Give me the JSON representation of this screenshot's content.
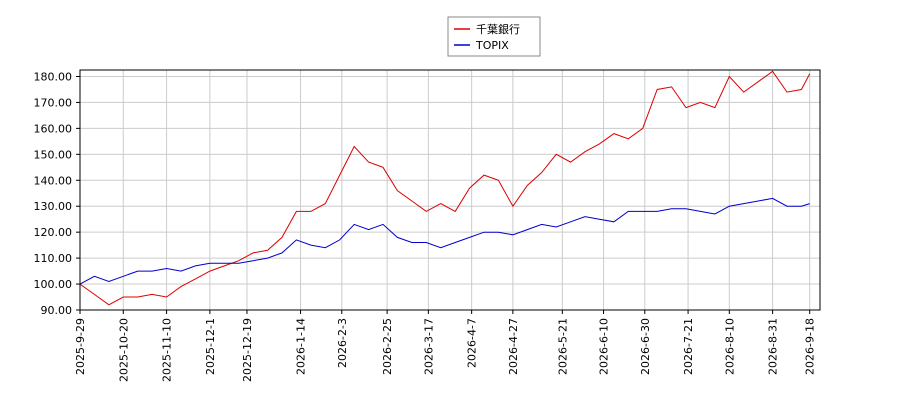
{
  "chart_data": {
    "type": "line",
    "x": [
      "2025-9-29",
      "2025-10-6",
      "2025-10-13",
      "2025-10-20",
      "2025-10-27",
      "2025-11-3",
      "2025-11-10",
      "2025-11-17",
      "2025-11-24",
      "2025-12-1",
      "2025-12-8",
      "2025-12-15",
      "2025-12-22",
      "2025-12-29",
      "2026-1-5",
      "2026-1-12",
      "2026-1-19",
      "2026-1-26",
      "2026-2-2",
      "2026-2-9",
      "2026-2-16",
      "2026-2-23",
      "2026-3-2",
      "2026-3-9",
      "2026-3-16",
      "2026-3-23",
      "2026-3-30",
      "2026-4-6",
      "2026-4-13",
      "2026-4-20",
      "2026-4-27",
      "2026-5-4",
      "2026-5-11",
      "2026-5-18",
      "2026-5-25",
      "2026-6-1",
      "2026-6-8",
      "2026-6-15",
      "2026-6-22",
      "2026-6-29",
      "2026-7-6",
      "2026-7-13",
      "2026-7-20",
      "2026-7-27",
      "2026-8-3",
      "2026-8-10",
      "2026-8-17",
      "2026-8-24",
      "2026-8-31",
      "2026-9-7",
      "2026-9-14",
      "2026-9-18"
    ],
    "series": [
      {
        "name": "千葉銀行",
        "color": "#dd0000",
        "values": [
          100,
          96,
          92,
          95,
          95,
          96,
          95,
          99,
          102,
          105,
          107,
          109,
          112,
          113,
          118,
          128,
          128,
          131,
          142,
          153,
          147,
          145,
          136,
          132,
          128,
          131,
          128,
          137,
          142,
          140,
          130,
          138,
          143,
          150,
          147,
          151,
          154,
          158,
          156,
          160,
          175,
          176,
          168,
          170,
          168,
          180,
          174,
          178,
          182,
          174,
          175,
          181
        ]
      },
      {
        "name": "TOPIX",
        "color": "#0000cc",
        "values": [
          100,
          103,
          101,
          103,
          105,
          105,
          106,
          105,
          107,
          108,
          108,
          108,
          109,
          110,
          112,
          117,
          115,
          114,
          117,
          123,
          121,
          123,
          118,
          116,
          116,
          114,
          116,
          118,
          120,
          120,
          119,
          121,
          123,
          122,
          124,
          126,
          125,
          124,
          128,
          128,
          128,
          129,
          129,
          128,
          127,
          130,
          131,
          132,
          133,
          130,
          130,
          131
        ]
      }
    ],
    "xlim": [
      "2025-9-29",
      "2026-9-23"
    ],
    "xticks": [
      "2025-9-29",
      "2025-10-20",
      "2025-11-10",
      "2025-12-1",
      "2025-12-19",
      "2026-1-14",
      "2026-2-3",
      "2026-2-25",
      "2026-3-17",
      "2026-4-7",
      "2026-4-27",
      "2026-5-21",
      "2026-6-10",
      "2026-6-30",
      "2026-7-21",
      "2026-8-10",
      "2026-8-31",
      "2026-9-18"
    ],
    "ylim": [
      90,
      182.5
    ],
    "yticks": [
      {
        "value": 90,
        "label": "90.00"
      },
      {
        "value": 100,
        "label": "100.00"
      },
      {
        "value": 110,
        "label": "110.00"
      },
      {
        "value": 120,
        "label": "120.00"
      },
      {
        "value": 130,
        "label": "130.00"
      },
      {
        "value": 140,
        "label": "140.00"
      },
      {
        "value": 150,
        "label": "150.00"
      },
      {
        "value": 160,
        "label": "160.00"
      },
      {
        "value": 170,
        "label": "170.00"
      },
      {
        "value": 180,
        "label": "180.00"
      }
    ],
    "grid": true,
    "legend": "top"
  }
}
